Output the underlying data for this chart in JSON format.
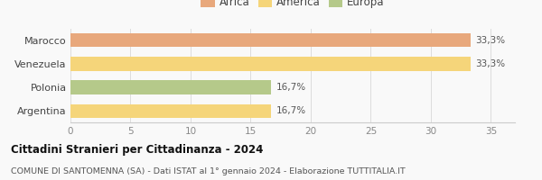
{
  "categories": [
    "Argentina",
    "Polonia",
    "Venezuela",
    "Marocco"
  ],
  "values": [
    16.7,
    16.7,
    33.3,
    33.3
  ],
  "bar_colors": [
    "#f5d57a",
    "#b5c98a",
    "#f5d57a",
    "#e8a87c"
  ],
  "continent_colors": {
    "Africa": "#e8a87c",
    "America": "#f5d57a",
    "Europa": "#b5c98a"
  },
  "labels": [
    "16,7%",
    "16,7%",
    "33,3%",
    "33,3%"
  ],
  "title": "Cittadini Stranieri per Cittadinanza - 2024",
  "subtitle": "COMUNE DI SANTOMENNA (SA) - Dati ISTAT al 1° gennaio 2024 - Elaborazione TUTTITALIA.IT",
  "xlim": [
    0,
    37
  ],
  "xticks": [
    0,
    5,
    10,
    15,
    20,
    25,
    30,
    35
  ],
  "background_color": "#f9f9f9",
  "legend_labels": [
    "Africa",
    "America",
    "Europa"
  ],
  "bar_height": 0.6
}
